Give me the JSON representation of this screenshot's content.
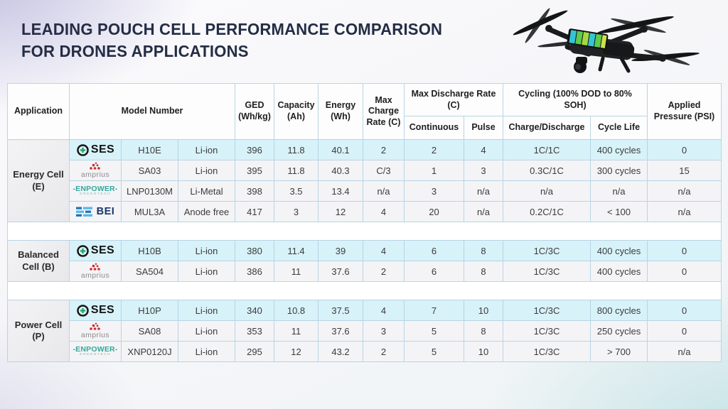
{
  "page": {
    "title_line1": "LEADING POUCH CELL PERFORMANCE COMPARISON",
    "title_line2": "FOR DRONES APPLICATIONS"
  },
  "colors": {
    "highlight_row": "#d7f2f9",
    "row_default": "#f4f4f6",
    "grid_border": "#b9d4e4",
    "title_text": "#242d45",
    "ses_green": "#28a765",
    "amprius_red": "#d22b2b",
    "enpower_teal": "#35a79a",
    "bei_dark_blue": "#1b72b8",
    "bei_light_blue": "#53b7e8"
  },
  "vendors": {
    "ses": {
      "name": "SES"
    },
    "amprius": {
      "name": "amprius"
    },
    "enpower": {
      "name": "-ENPOWER-",
      "sub": "GREENTECH"
    },
    "bei": {
      "name": "BEI"
    }
  },
  "table": {
    "headers": {
      "application": "Application",
      "model_number": "Model Number",
      "ged": "GED (Wh/kg)",
      "capacity": "Capacity (Ah)",
      "energy": "Energy (Wh)",
      "max_charge": "Max Charge Rate (C)",
      "max_discharge": "Max Discharge Rate (C)",
      "continuous": "Continuous",
      "pulse": "Pulse",
      "cycling": "Cycling (100% DOD to 80% SOH)",
      "charge_discharge": "Charge/Discharge",
      "cycle_life": "Cycle Life",
      "pressure": "Applied Pressure (PSI)"
    },
    "groups": [
      {
        "label": "Energy Cell (E)",
        "rows": [
          {
            "vendor": "ses",
            "highlight": true,
            "model": "H10E",
            "chemistry": "Li-ion",
            "ged": "396",
            "capacity": "11.8",
            "energy": "40.1",
            "max_charge": "2",
            "discharge_continuous": "2",
            "discharge_pulse": "4",
            "charge_discharge": "1C/1C",
            "cycle_life": "400 cycles",
            "pressure": "0"
          },
          {
            "vendor": "amprius",
            "highlight": false,
            "model": "SA03",
            "chemistry": "Li-ion",
            "ged": "395",
            "capacity": "11.8",
            "energy": "40.3",
            "max_charge": "C/3",
            "discharge_continuous": "1",
            "discharge_pulse": "3",
            "charge_discharge": "0.3C/1C",
            "cycle_life": "300 cycles",
            "pressure": "15"
          },
          {
            "vendor": "enpower",
            "highlight": false,
            "model": "LNP0130M",
            "chemistry": "Li-Metal",
            "ged": "398",
            "capacity": "3.5",
            "energy": "13.4",
            "max_charge": "n/a",
            "discharge_continuous": "3",
            "discharge_pulse": "n/a",
            "charge_discharge": "n/a",
            "cycle_life": "n/a",
            "pressure": "n/a"
          },
          {
            "vendor": "bei",
            "highlight": false,
            "model": "MUL3A",
            "chemistry": "Anode free",
            "ged": "417",
            "capacity": "3",
            "energy": "12",
            "max_charge": "4",
            "discharge_continuous": "20",
            "discharge_pulse": "n/a",
            "charge_discharge": "0.2C/1C",
            "cycle_life": "< 100",
            "pressure": "n/a"
          }
        ]
      },
      {
        "label": "Balanced Cell (B)",
        "rows": [
          {
            "vendor": "ses",
            "highlight": true,
            "model": "H10B",
            "chemistry": "Li-ion",
            "ged": "380",
            "capacity": "11.4",
            "energy": "39",
            "max_charge": "4",
            "discharge_continuous": "6",
            "discharge_pulse": "8",
            "charge_discharge": "1C/3C",
            "cycle_life": "400 cycles",
            "pressure": "0"
          },
          {
            "vendor": "amprius",
            "highlight": false,
            "model": "SA504",
            "chemistry": "Li-ion",
            "ged": "386",
            "capacity": "11",
            "energy": "37.6",
            "max_charge": "2",
            "discharge_continuous": "6",
            "discharge_pulse": "8",
            "charge_discharge": "1C/3C",
            "cycle_life": "400 cycles",
            "pressure": "0"
          }
        ]
      },
      {
        "label": "Power Cell (P)",
        "rows": [
          {
            "vendor": "ses",
            "highlight": true,
            "model": "H10P",
            "chemistry": "Li-ion",
            "ged": "340",
            "capacity": "10.8",
            "energy": "37.5",
            "max_charge": "4",
            "discharge_continuous": "7",
            "discharge_pulse": "10",
            "charge_discharge": "1C/3C",
            "cycle_life": "800 cycles",
            "pressure": "0"
          },
          {
            "vendor": "amprius",
            "highlight": false,
            "model": "SA08",
            "chemistry": "Li-ion",
            "ged": "353",
            "capacity": "11",
            "energy": "37.6",
            "max_charge": "3",
            "discharge_continuous": "5",
            "discharge_pulse": "8",
            "charge_discharge": "1C/3C",
            "cycle_life": "250 cycles",
            "pressure": "0"
          },
          {
            "vendor": "enpower",
            "highlight": false,
            "model": "XNP0120J",
            "chemistry": "Li-ion",
            "ged": "295",
            "capacity": "12",
            "energy": "43.2",
            "max_charge": "2",
            "discharge_continuous": "5",
            "discharge_pulse": "10",
            "charge_discharge": "1C/3C",
            "cycle_life": "> 700",
            "pressure": "n/a"
          }
        ]
      }
    ]
  }
}
